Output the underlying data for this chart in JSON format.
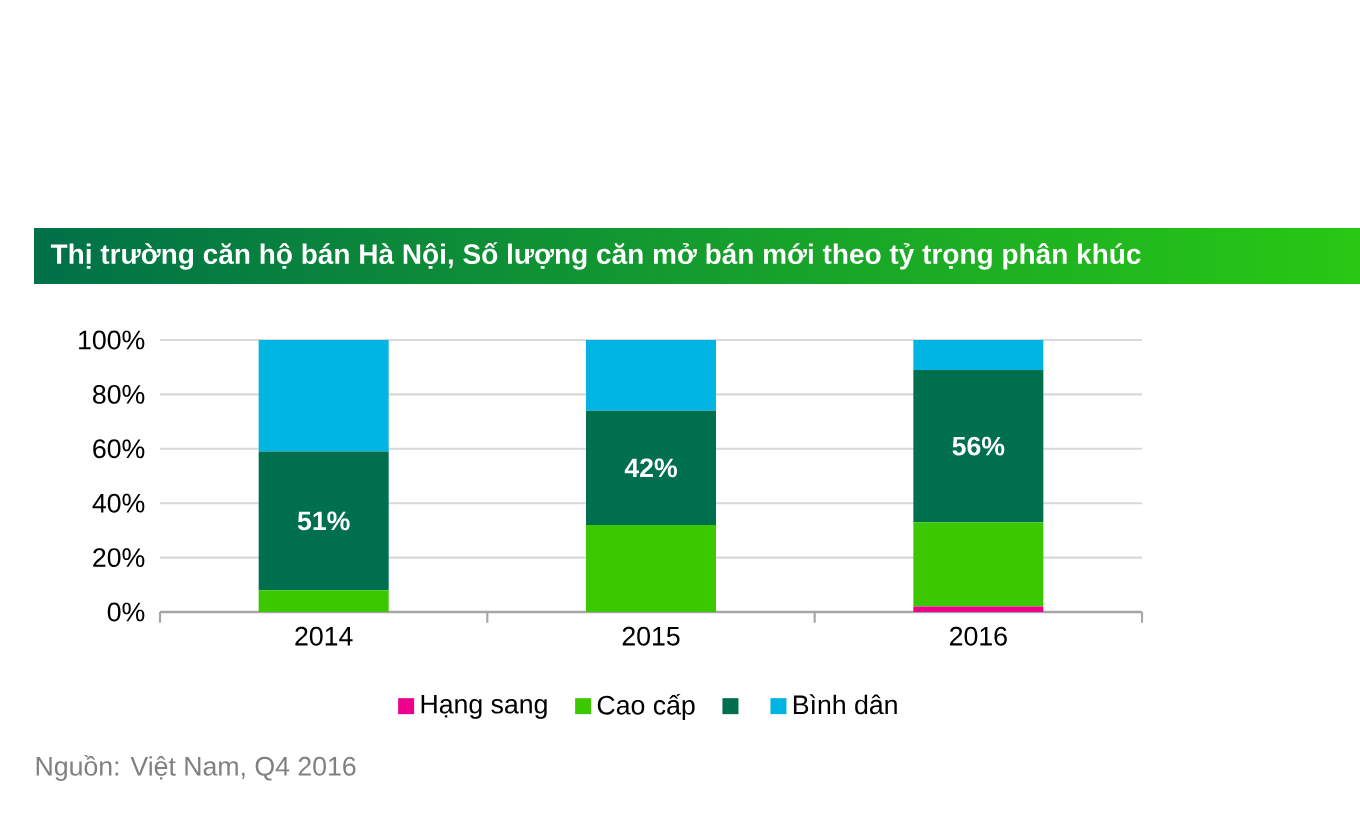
{
  "chart_data": {
    "type": "bar",
    "stacked": true,
    "title": "Thị trường căn hộ bán Hà Nội, Số lượng căn mở bán mới theo tỷ trọng phân khúc",
    "categories": [
      "2014",
      "2015",
      "2016"
    ],
    "series": [
      {
        "name": "Hạng sang",
        "color": "#ec008c",
        "values": [
          0,
          0,
          2
        ]
      },
      {
        "name": "Cao cấp",
        "color": "#3cc800",
        "values": [
          8,
          32,
          31
        ]
      },
      {
        "color": "#006f4e",
        "values": [
          51,
          42,
          56
        ],
        "value_labels": [
          "51%",
          "42%",
          "56%"
        ]
      },
      {
        "name": "Bình dân",
        "color": "#00b4e4",
        "values": [
          41,
          26,
          11
        ]
      }
    ],
    "ylim": [
      0,
      100
    ],
    "yticks": [
      {
        "value": 0,
        "label": "0%"
      },
      {
        "value": 20,
        "label": "20%"
      },
      {
        "value": 40,
        "label": "40%"
      },
      {
        "value": 60,
        "label": "60%"
      },
      {
        "value": 80,
        "label": "80%"
      },
      {
        "value": 100,
        "label": "100%"
      }
    ],
    "grid": "y",
    "legend": "bottom",
    "annotations": [
      "Nguồn: Việt Nam, Q4 2016"
    ]
  }
}
